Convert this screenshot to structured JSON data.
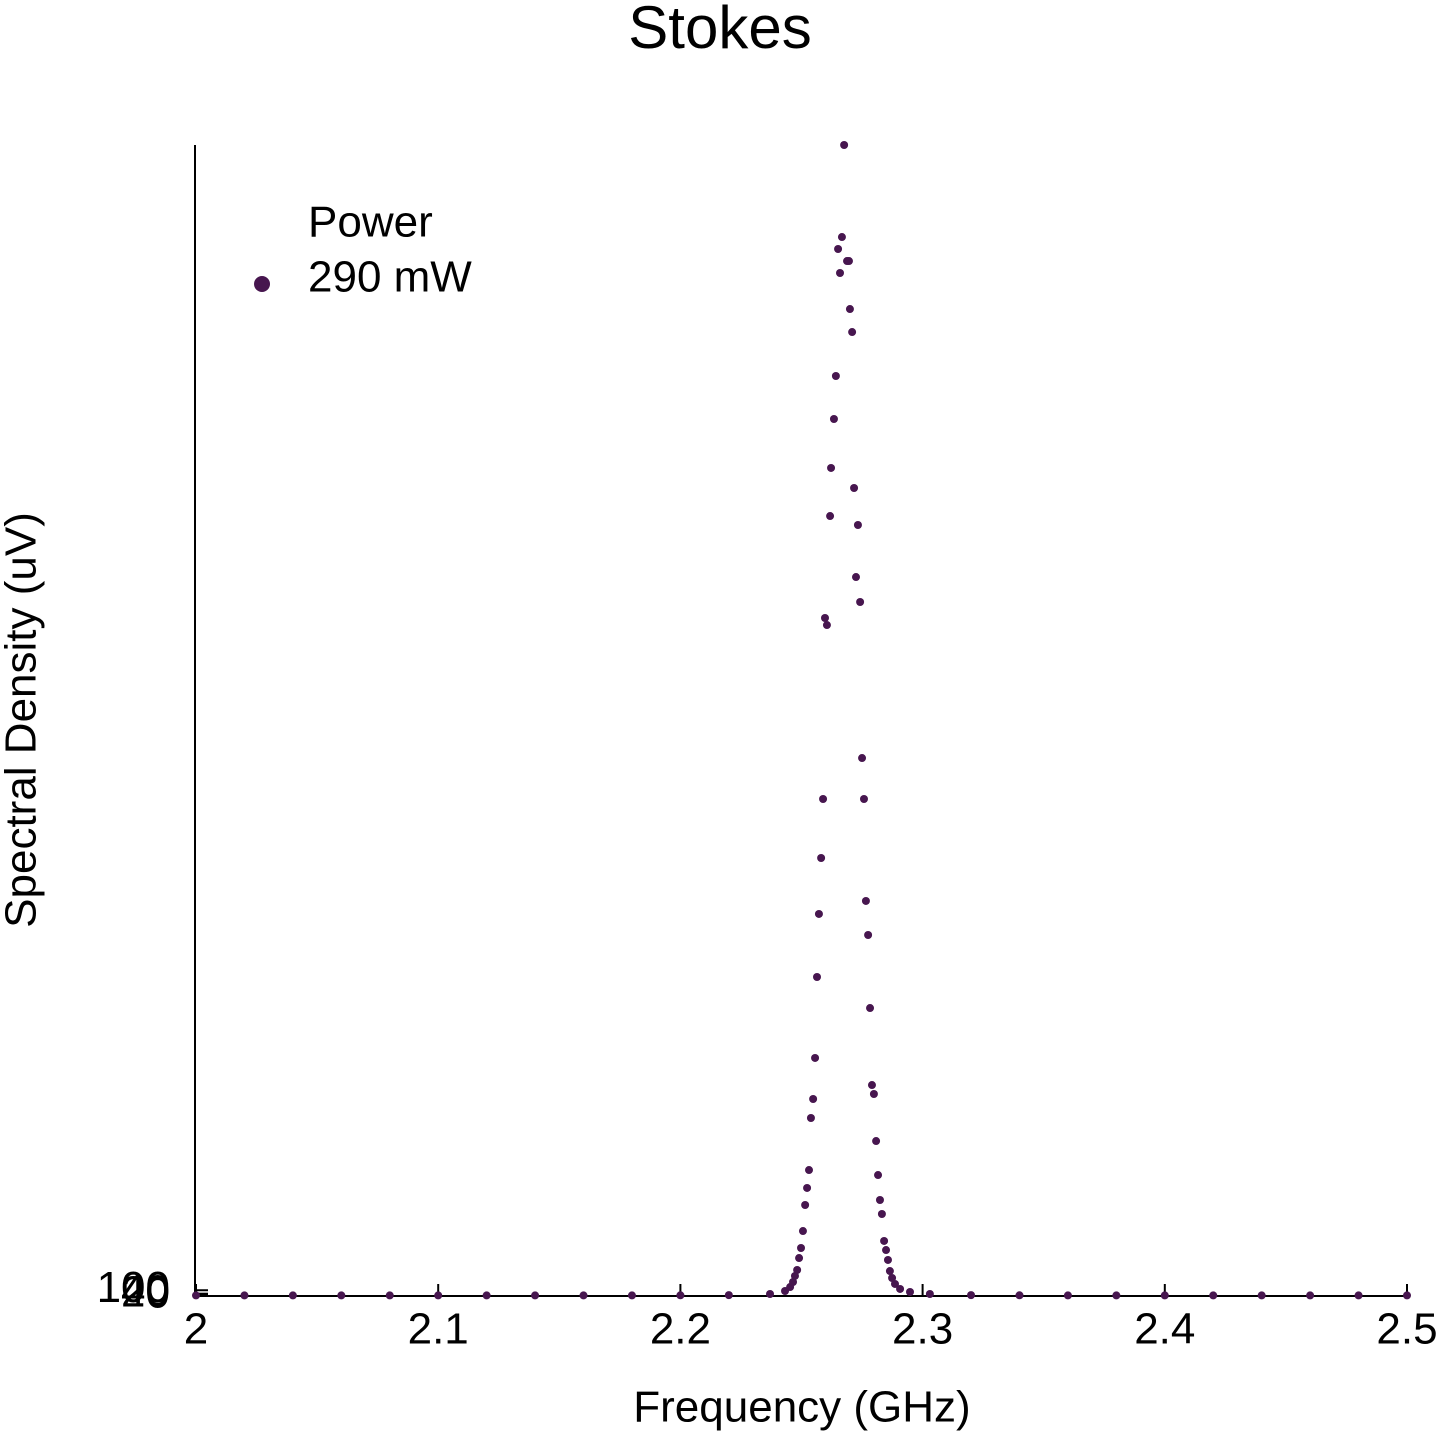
{
  "chart_data": {
    "type": "scatter",
    "title": "Stokes",
    "xlabel": "Frequency (GHz)",
    "ylabel": "Spectral Density (uV)",
    "legend_title": "Power",
    "legend": "upper-left",
    "xlim": [
      2,
      2.5
    ],
    "xticks": [
      2,
      2.1,
      2.2,
      2.3,
      2.4,
      2.5
    ],
    "ylim": [
      0,
      20000
    ],
    "yticks": [
      0,
      20,
      40,
      100
    ],
    "series": [
      {
        "name": "290 mW",
        "color": "#47164f",
        "x": [
          2.0,
          2.02,
          2.04,
          2.06,
          2.08,
          2.1,
          2.12,
          2.14,
          2.16,
          2.18,
          2.2,
          2.22,
          2.237,
          2.2432,
          2.2453,
          2.2465,
          2.2473,
          2.2482,
          2.249,
          2.2498,
          2.2506,
          2.2515,
          2.2523,
          2.2531,
          2.2539,
          2.2548,
          2.2556,
          2.2564,
          2.2572,
          2.2581,
          2.2589,
          2.2597,
          2.2605,
          2.2618,
          2.2622,
          2.2634,
          2.2642,
          2.2651,
          2.2659,
          2.2667,
          2.2676,
          2.2688,
          2.2696,
          2.27,
          2.2709,
          2.2717,
          2.2725,
          2.2733,
          2.2742,
          2.275,
          2.2758,
          2.2766,
          2.2775,
          2.2783,
          2.2791,
          2.2799,
          2.2808,
          2.2816,
          2.2824,
          2.2832,
          2.2841,
          2.2849,
          2.2857,
          2.2865,
          2.2874,
          2.2886,
          2.2907,
          2.2948,
          2.303,
          2.32,
          2.34,
          2.36,
          2.38,
          2.4,
          2.42,
          2.44,
          2.46,
          2.48,
          2.5
        ],
        "values": [
          10,
          10,
          10,
          10,
          10,
          10,
          10,
          10,
          10,
          10,
          12,
          15,
          35,
          87,
          156,
          243,
          348,
          452,
          660,
          834,
          1129,
          1581,
          1877,
          2189,
          3093,
          3423,
          4136,
          5543,
          6638,
          7611,
          8636,
          11781,
          11659,
          13553,
          14388,
          15239,
          15986,
          18193,
          17776,
          18401,
          20000,
          17984,
          17984,
          17150,
          16750,
          14040,
          12493,
          13397,
          12059,
          9348,
          8636,
          6864,
          6273,
          5004,
          3666,
          3510,
          2693,
          2102,
          1668,
          1425,
          956,
          799,
          626,
          434,
          313,
          209,
          122,
          70,
          35,
          15,
          12,
          10,
          10,
          10,
          10,
          10,
          10,
          10,
          10
        ]
      }
    ]
  }
}
